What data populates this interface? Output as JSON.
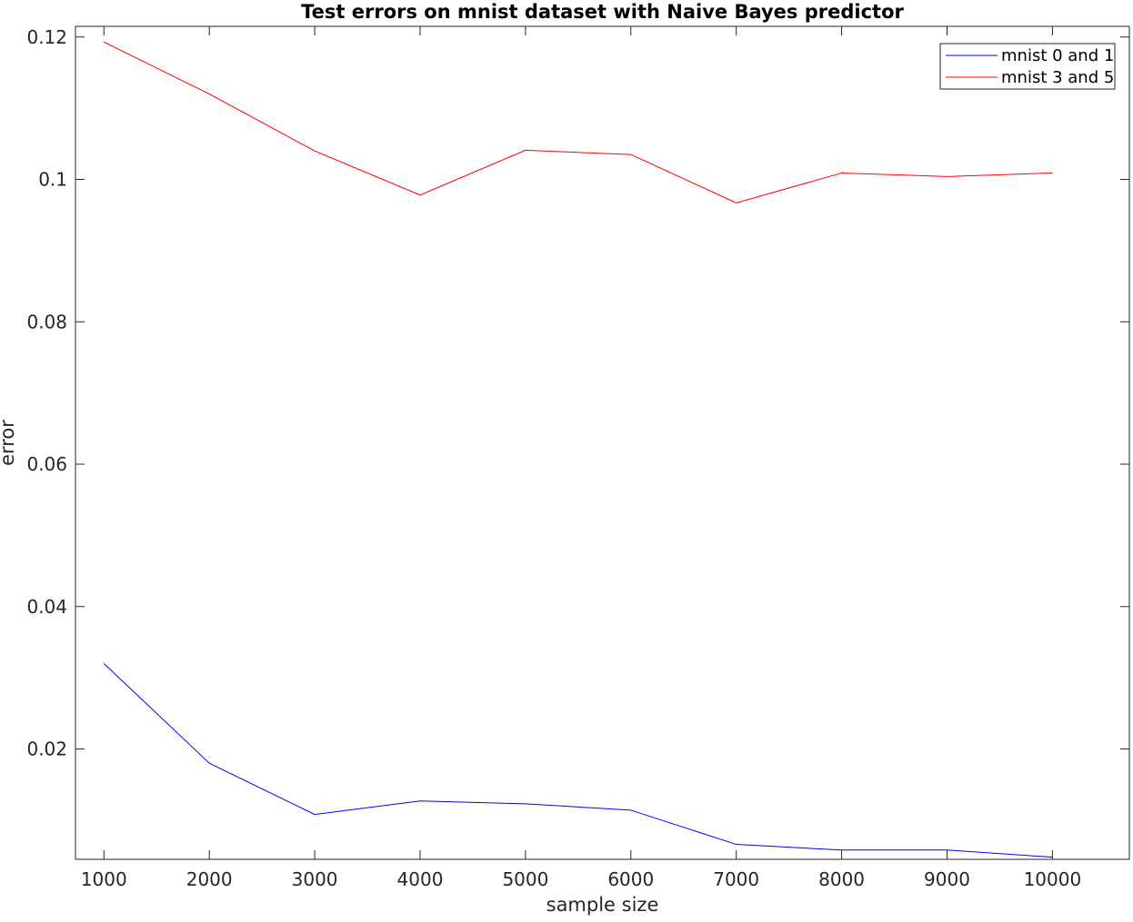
{
  "chart_data": {
    "type": "line",
    "title": "Test errors on mnist dataset with Naive Bayes predictor",
    "xlabel": "sample size",
    "ylabel": "error",
    "x": [
      1000,
      2000,
      3000,
      4000,
      5000,
      6000,
      7000,
      8000,
      9000,
      10000
    ],
    "xlim": [
      730,
      10730
    ],
    "ylim": [
      0.0045,
      0.1215
    ],
    "xticks": [
      1000,
      2000,
      3000,
      4000,
      5000,
      6000,
      7000,
      8000,
      9000,
      10000
    ],
    "xtick_labels": [
      "1000",
      "2000",
      "3000",
      "4000",
      "5000",
      "6000",
      "7000",
      "8000",
      "9000",
      "10000"
    ],
    "yticks": [
      0.02,
      0.04,
      0.06,
      0.08,
      0.1,
      0.12
    ],
    "ytick_labels": [
      "0.02",
      "0.04",
      "0.06",
      "0.08",
      "0.1",
      "0.12"
    ],
    "grid": false,
    "legend_position": "top-right",
    "series": [
      {
        "name": "mnist 0 and 1",
        "color": "#0000ff",
        "values": [
          0.032,
          0.018,
          0.0108,
          0.0127,
          0.0123,
          0.0114,
          0.0066,
          0.0058,
          0.0058,
          0.0048
        ]
      },
      {
        "name": "mnist 3 and 5",
        "color": "#ff0000",
        "values": [
          0.1193,
          0.112,
          0.104,
          0.0978,
          0.1041,
          0.1035,
          0.0967,
          0.1009,
          0.1004,
          0.1009
        ]
      }
    ]
  }
}
